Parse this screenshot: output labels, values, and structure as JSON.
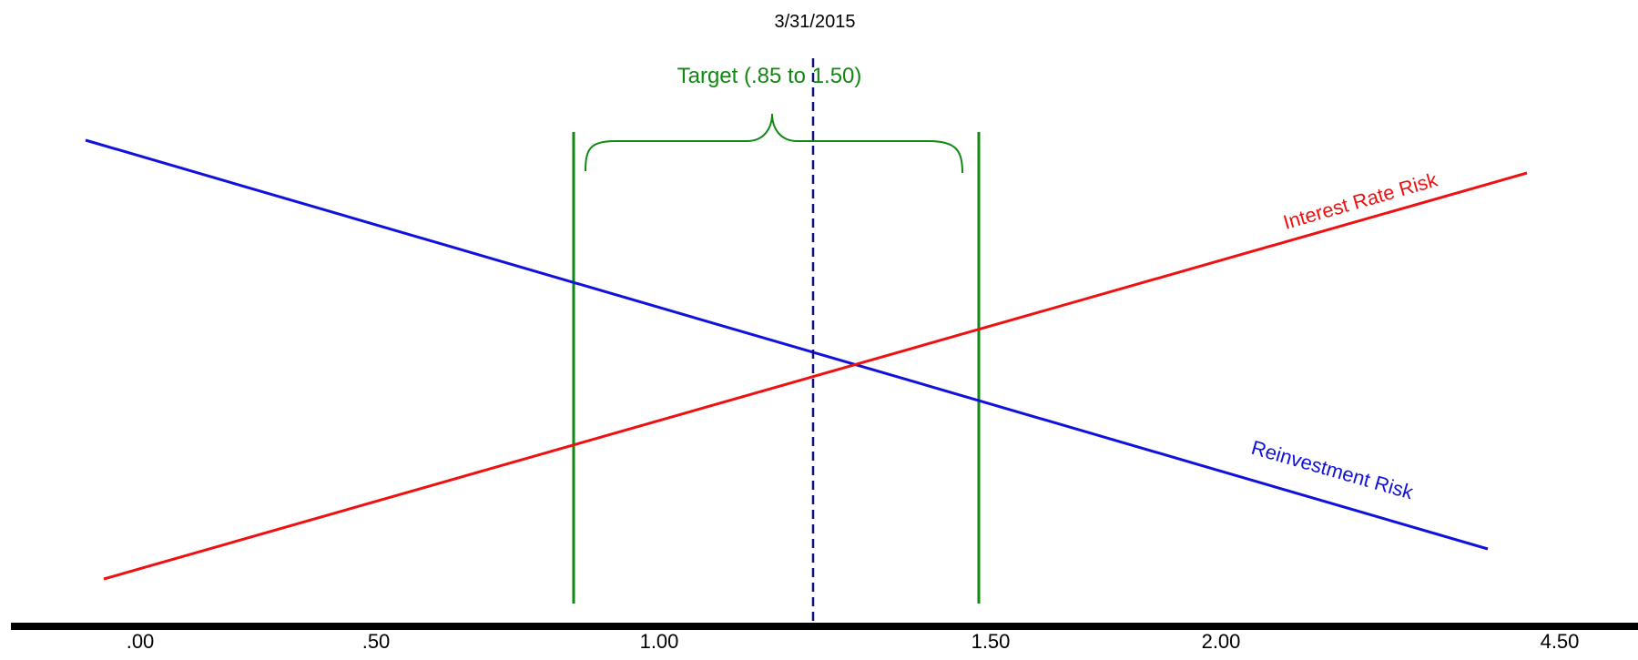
{
  "date_label": "3/31/2015",
  "target": {
    "label": "Target (.85 to 1.50)",
    "low": 0.85,
    "high": 1.5
  },
  "current_marker": {
    "value": 1.23,
    "style": "dashed"
  },
  "axis": {
    "tick_labels": [
      ".00",
      ".50",
      "1.00",
      "1.50",
      "2.00",
      "4.50"
    ]
  },
  "series": [
    {
      "name": "Interest Rate Risk",
      "direction": "rising"
    },
    {
      "name": "Reinvestment Risk",
      "direction": "falling"
    }
  ],
  "colors": {
    "interest_rate_risk": "#ee1111",
    "reinvestment_risk": "#1111dd",
    "target": "#118811",
    "current_marker": "#11117a",
    "axis": "#000000",
    "text": "#000000"
  }
}
